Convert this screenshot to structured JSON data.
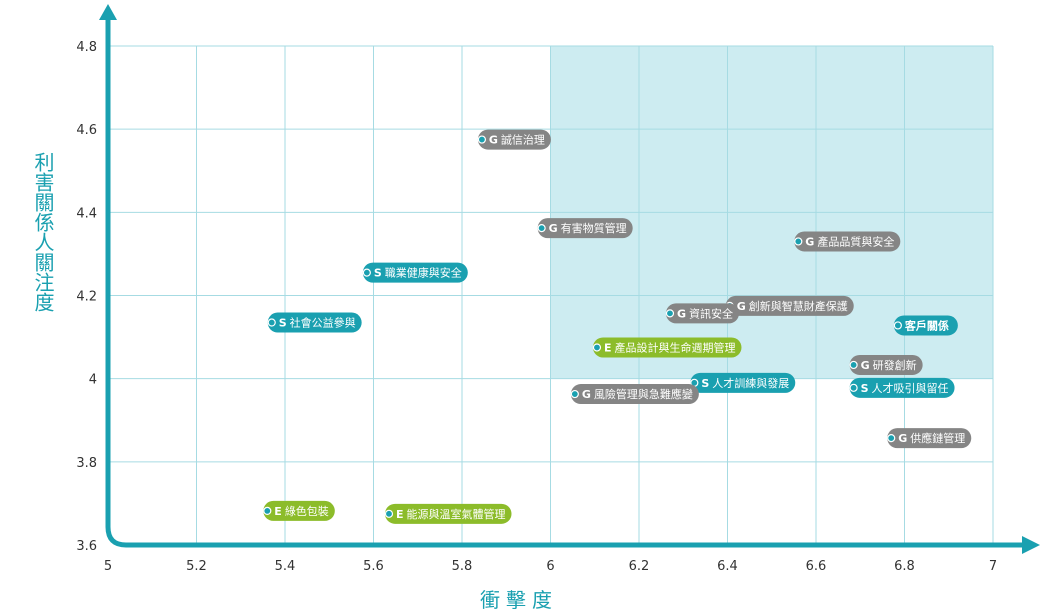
{
  "chart_data": {
    "type": "scatter",
    "xlabel": "衝擊度",
    "ylabel": "利害關係人關注度",
    "xlim": [
      5,
      7
    ],
    "ylim": [
      3.6,
      4.8
    ],
    "x_ticks": [
      "5",
      "5.2",
      "5.4",
      "5.6",
      "5.8",
      "6",
      "6.2",
      "6.4",
      "6.6",
      "6.8",
      "7"
    ],
    "y_ticks": [
      "3.6",
      "3.8",
      "4",
      "4.2",
      "4.4",
      "4.6",
      "4.8"
    ],
    "highlight_region": {
      "x": [
        6,
        7
      ],
      "y": [
        4,
        4.8
      ]
    },
    "grid": true,
    "colors": {
      "G": "#858585",
      "S": "#1aa0b0",
      "E": "#8cbc2a",
      "axis": "#1aa0b0",
      "region": "#cdecf1",
      "grid": "#a6dbe3"
    },
    "points": [
      {
        "prefix": "G",
        "label": "誠信治理",
        "x": 5.845,
        "y": 4.575
      },
      {
        "prefix": "G",
        "label": "有害物質管理",
        "x": 5.98,
        "y": 4.362
      },
      {
        "prefix": "G",
        "label": "產品品質與安全",
        "x": 6.56,
        "y": 4.33
      },
      {
        "prefix": "S",
        "label": "職業健康與安全",
        "x": 5.585,
        "y": 4.255
      },
      {
        "prefix": "G",
        "label": "創新與智慧財產保護",
        "x": 6.405,
        "y": 4.175
      },
      {
        "prefix": "G",
        "label": "資訊安全",
        "x": 6.27,
        "y": 4.157
      },
      {
        "prefix": "S",
        "label": "社會公益參與",
        "x": 5.37,
        "y": 4.135
      },
      {
        "prefix": "",
        "label": "客戶關係",
        "x": 6.785,
        "y": 4.128
      },
      {
        "prefix": "E",
        "label": "產品設計與生命週期管理",
        "x": 6.105,
        "y": 4.075
      },
      {
        "prefix": "G",
        "label": "研發創新",
        "x": 6.685,
        "y": 4.033
      },
      {
        "prefix": "S",
        "label": "人才訓練與發展",
        "x": 6.325,
        "y": 3.99
      },
      {
        "prefix": "S",
        "label": "人才吸引與留任",
        "x": 6.685,
        "y": 3.978
      },
      {
        "prefix": "G",
        "label": "風險管理與急難應變",
        "x": 6.055,
        "y": 3.963
      },
      {
        "prefix": "G",
        "label": "供應鏈管理",
        "x": 6.77,
        "y": 3.857
      },
      {
        "prefix": "E",
        "label": "綠色包裝",
        "x": 5.36,
        "y": 3.682
      },
      {
        "prefix": "E",
        "label": "能源與溫室氣體管理",
        "x": 5.635,
        "y": 3.675
      }
    ]
  }
}
